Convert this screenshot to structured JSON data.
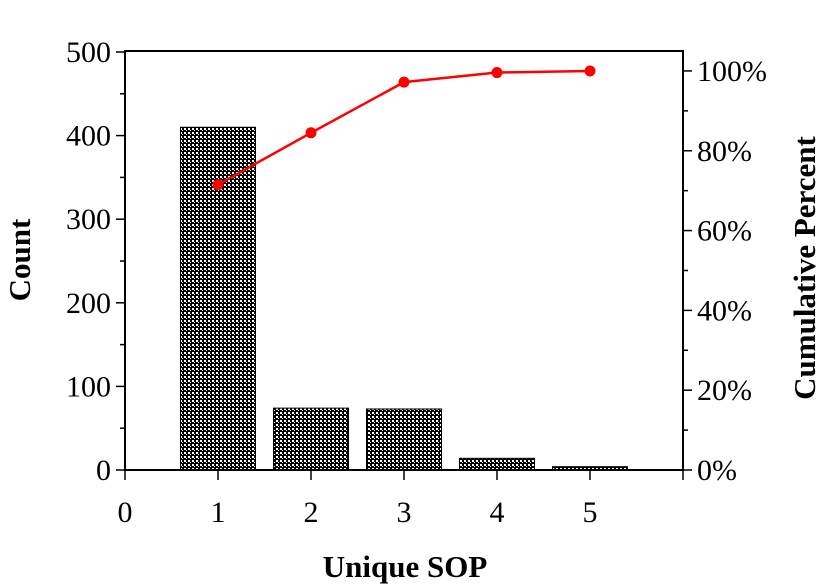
{
  "chart_data": {
    "type": "bar",
    "xlabel": "Unique SOP",
    "ylabel": "Count",
    "y2label": "Cumulative Percent",
    "x_ticks": [
      "0",
      "1",
      "2",
      "3",
      "4",
      "5"
    ],
    "y_ticks": [
      "0",
      "100",
      "200",
      "300",
      "400",
      "500"
    ],
    "y2_ticks": [
      "0%",
      "20%",
      "40%",
      "60%",
      "80%",
      "100%"
    ],
    "xlim": [
      0,
      6
    ],
    "ylim": [
      0,
      500
    ],
    "y2lim": [
      0,
      105
    ],
    "grid": false,
    "series": [
      {
        "type": "bar",
        "x": [
          1,
          2,
          3,
          4,
          5
        ],
        "values": [
          410,
          74,
          73,
          14,
          4
        ],
        "color": "#000000",
        "pattern": "checkered"
      },
      {
        "type": "line",
        "axis": "right",
        "x": [
          1,
          2,
          3,
          4,
          5
        ],
        "values": [
          71.5,
          84.5,
          97.2,
          99.6,
          100
        ],
        "color": "#ff0000"
      }
    ]
  }
}
